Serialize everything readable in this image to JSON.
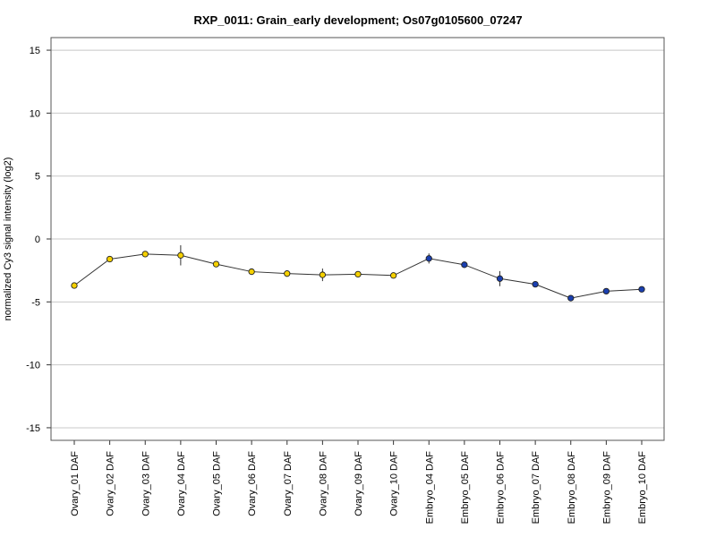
{
  "chart_data": {
    "type": "line",
    "title": "RXP_0011: Grain_early development; Os07g0105600_07247",
    "xlabel": "",
    "ylabel": "normalized Cy3 signal intensity (log2)",
    "ylim": [
      -16,
      16
    ],
    "yticks": [
      -15,
      -10,
      -5,
      0,
      5,
      10,
      15
    ],
    "grid": true,
    "categories": [
      "Ovary_01 DAF",
      "Ovary_02 DAF",
      "Ovary_03 DAF",
      "Ovary_04 DAF",
      "Ovary_05 DAF",
      "Ovary_06 DAF",
      "Ovary_07 DAF",
      "Ovary_08 DAF",
      "Ovary_09 DAF",
      "Ovary_10 DAF",
      "Embryo_04 DAF",
      "Embryo_05 DAF",
      "Embryo_06 DAF",
      "Embryo_07 DAF",
      "Embryo_08 DAF",
      "Embryo_09 DAF",
      "Embryo_10 DAF"
    ],
    "series": [
      {
        "values": [
          -3.7,
          -1.6,
          -1.2,
          -1.3,
          -2.0,
          -2.6,
          -2.75,
          -2.85,
          -2.8,
          -2.9,
          -1.55,
          -2.05,
          -3.15,
          -3.6,
          -4.7,
          -4.15,
          -4.0
        ],
        "errors": [
          0.15,
          0.2,
          0.15,
          0.8,
          0.15,
          0.15,
          0.15,
          0.5,
          0.15,
          0.15,
          0.4,
          0.15,
          0.6,
          0.15,
          0.15,
          0.15,
          0.15
        ],
        "point_colors": [
          "#f5d000",
          "#f5d000",
          "#f5d000",
          "#f5d000",
          "#f5d000",
          "#f5d000",
          "#f5d000",
          "#f5d000",
          "#f5d000",
          "#f5d000",
          "#1a3fb0",
          "#1a3fb0",
          "#1a3fb0",
          "#1a3fb0",
          "#1a3fb0",
          "#1a3fb0",
          "#1a3fb0"
        ]
      }
    ],
    "line_color": "#333333",
    "grid_color": "#c8c8c8"
  }
}
